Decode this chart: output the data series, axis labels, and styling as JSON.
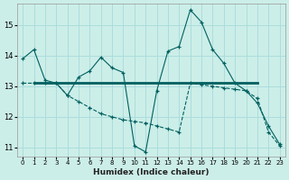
{
  "xlabel": "Humidex (Indice chaleur)",
  "background_color": "#cceee8",
  "grid_color": "#aadddd",
  "line_color": "#006060",
  "xlim": [
    -0.5,
    23.5
  ],
  "ylim": [
    10.7,
    15.7
  ],
  "yticks": [
    11,
    12,
    13,
    14,
    15
  ],
  "xticks": [
    0,
    1,
    2,
    3,
    4,
    5,
    6,
    7,
    8,
    9,
    10,
    11,
    12,
    13,
    14,
    15,
    16,
    17,
    18,
    19,
    20,
    21,
    22,
    23
  ],
  "series1_x": [
    0,
    1,
    2,
    3,
    4,
    5,
    6,
    7,
    8,
    9,
    10,
    11,
    12,
    13,
    14,
    15,
    16,
    17,
    18,
    19,
    20,
    21,
    22,
    23
  ],
  "series1_y": [
    13.9,
    14.2,
    13.2,
    13.1,
    12.7,
    13.3,
    13.5,
    13.95,
    13.6,
    13.45,
    11.05,
    10.85,
    12.85,
    14.15,
    14.3,
    15.5,
    15.1,
    14.2,
    13.75,
    13.1,
    12.85,
    12.45,
    11.7,
    11.1
  ],
  "series2_x": [
    0,
    1,
    2,
    3,
    4,
    5,
    6,
    7,
    8,
    9,
    10,
    11,
    12,
    13,
    14,
    15,
    16,
    17,
    18,
    19,
    20,
    21,
    22,
    23
  ],
  "series2_y": [
    13.1,
    13.1,
    13.1,
    13.1,
    12.7,
    12.5,
    12.3,
    12.1,
    12.0,
    11.9,
    11.85,
    11.8,
    11.7,
    11.6,
    11.5,
    13.1,
    13.05,
    13.0,
    12.95,
    12.9,
    12.85,
    12.6,
    11.5,
    11.05
  ],
  "series3_x": [
    1,
    21
  ],
  "series3_y": [
    13.1,
    13.1
  ]
}
